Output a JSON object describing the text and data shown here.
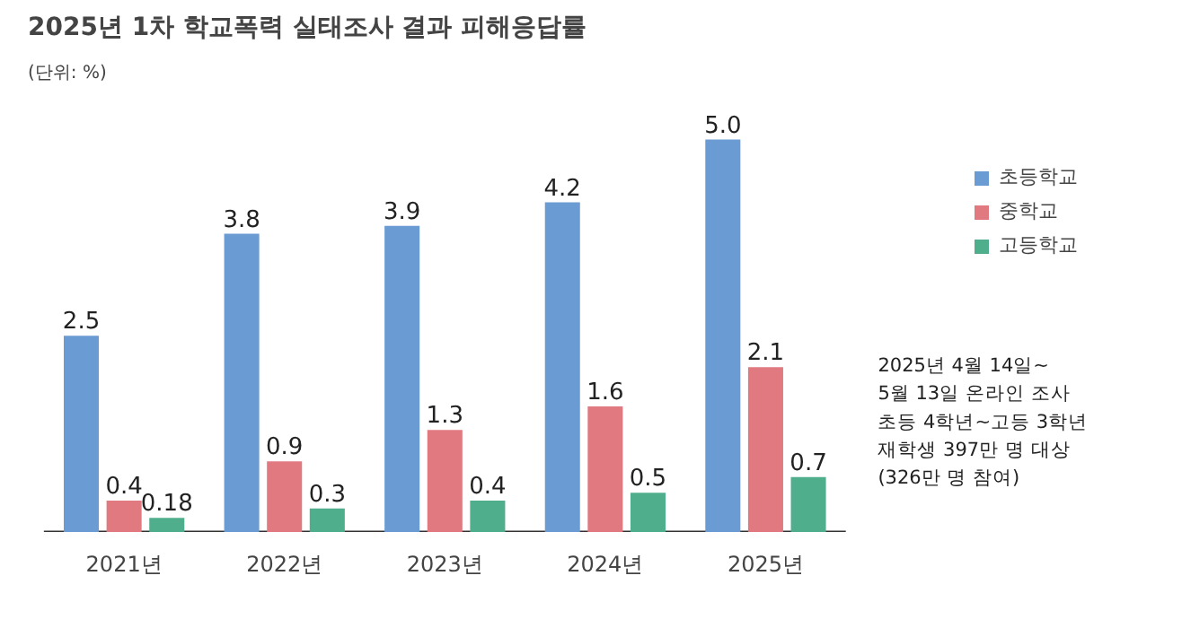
{
  "chart_data": {
    "type": "bar",
    "title": "2025년 1차 학교폭력 실태조사 결과 피해응답률",
    "subtitle": "(단위: %)",
    "categories": [
      "2021년",
      "2022년",
      "2023년",
      "2024년",
      "2025년"
    ],
    "series": [
      {
        "name": "초등학교",
        "color": "#6b9bd3",
        "values": [
          2.5,
          3.8,
          3.9,
          4.2,
          5.0
        ],
        "value_labels": [
          "2.5",
          "3.8",
          "3.9",
          "4.2",
          "5.0"
        ]
      },
      {
        "name": "중학교",
        "color": "#e07a80",
        "values": [
          0.4,
          0.9,
          1.3,
          1.6,
          2.1
        ],
        "value_labels": [
          "0.4",
          "0.9",
          "1.3",
          "1.6",
          "2.1"
        ]
      },
      {
        "name": "고등학교",
        "color": "#4fae8c",
        "values": [
          0.18,
          0.3,
          0.4,
          0.5,
          0.7
        ],
        "value_labels": [
          "0.18",
          "0.3",
          "0.4",
          "0.5",
          "0.7"
        ]
      }
    ],
    "legend": "right",
    "grid": false,
    "annotations": [
      "2025년 4월 14일~\n5월 13일 온라인 조사\n초등 4학년~고등 3학년\n재학생 397만 명 대상\n(326만 명 참여)"
    ]
  }
}
